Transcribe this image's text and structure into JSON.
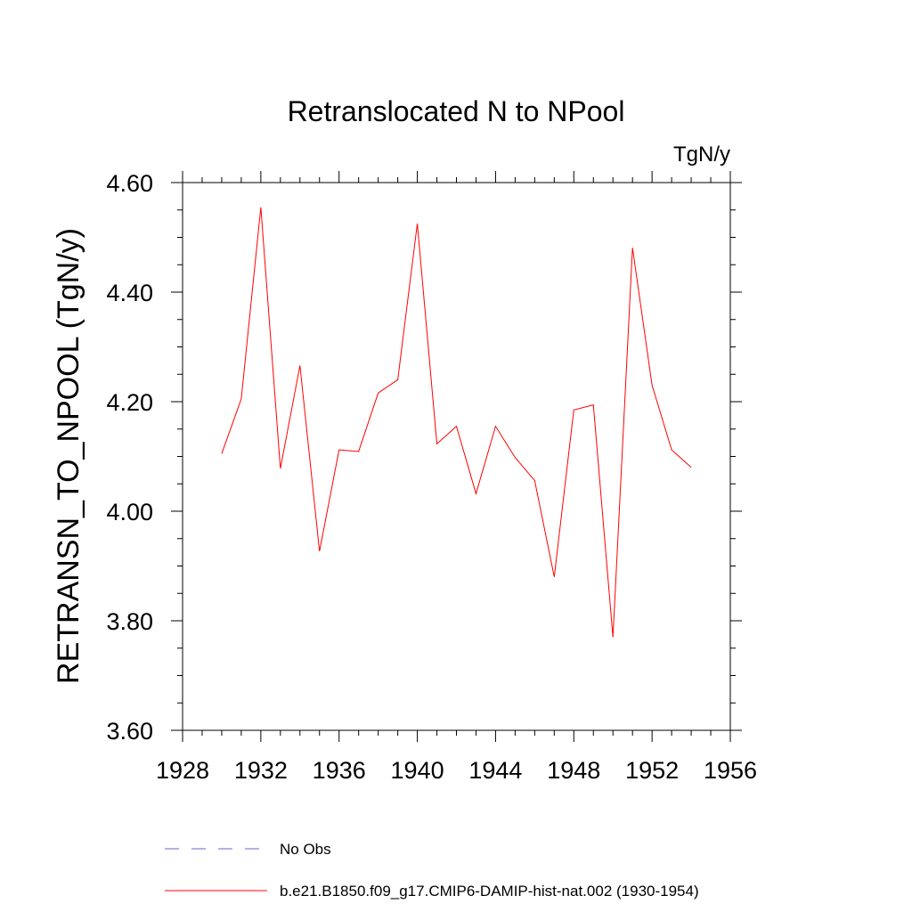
{
  "chart_data": {
    "type": "line",
    "title": "Retranslocated N to NPool",
    "units": "TgN/y",
    "ylabel": "RETRANSN_TO_NPOOL  (TgN/y)",
    "xlabel": "",
    "xlim": [
      1928,
      1956
    ],
    "ylim": [
      3.6,
      4.6
    ],
    "x_ticks": [
      1928,
      1932,
      1936,
      1940,
      1944,
      1948,
      1952,
      1956
    ],
    "x_tick_labels": [
      "1928",
      "1932",
      "1936",
      "1940",
      "1944",
      "1948",
      "1952",
      "1956"
    ],
    "y_ticks": [
      3.6,
      3.8,
      4.0,
      4.2,
      4.4,
      4.6
    ],
    "y_tick_labels": [
      "3.60",
      "3.80",
      "4.00",
      "4.20",
      "4.40",
      "4.60"
    ],
    "grid": false,
    "legend_position": "bottom",
    "x": [
      1930,
      1931,
      1932,
      1933,
      1934,
      1935,
      1936,
      1937,
      1938,
      1939,
      1940,
      1941,
      1942,
      1943,
      1944,
      1945,
      1946,
      1947,
      1948,
      1949,
      1950,
      1951,
      1952,
      1953,
      1954
    ],
    "series": [
      {
        "name": "b.e21.B1850.f09_g17.CMIP6-DAMIP-hist-nat.002 (1930-1954)",
        "color": "#ff0000",
        "style": "solid",
        "values": [
          4.105,
          4.205,
          4.555,
          4.078,
          4.266,
          3.927,
          4.112,
          4.109,
          4.216,
          4.24,
          4.525,
          4.123,
          4.155,
          4.032,
          4.155,
          4.098,
          4.056,
          3.88,
          4.185,
          4.194,
          3.77,
          4.481,
          4.23,
          4.112,
          4.08
        ]
      }
    ],
    "legend": [
      {
        "label": "No Obs",
        "color": "#6666cc",
        "style": "dashed"
      },
      {
        "label": "b.e21.B1850.f09_g17.CMIP6-DAMIP-hist-nat.002 (1930-1954)",
        "color": "#ff0000",
        "style": "solid"
      }
    ]
  }
}
